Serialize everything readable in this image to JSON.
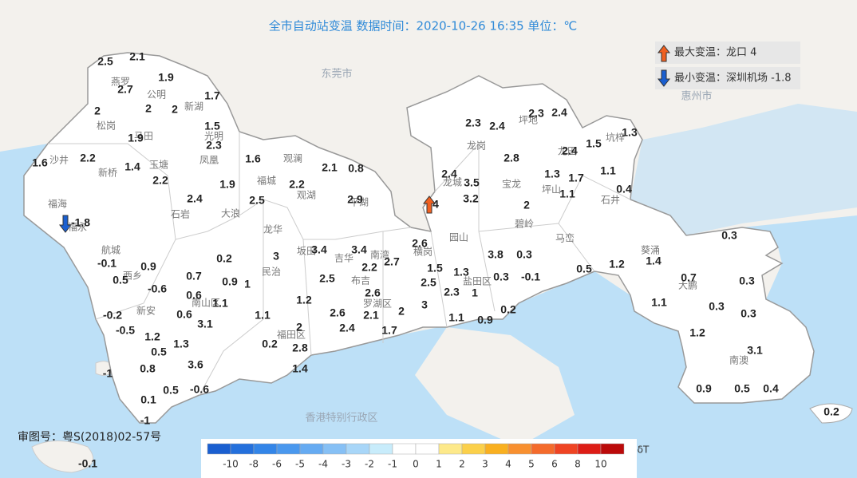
{
  "header": {
    "title": "全市自动站变温  数据时间：2020-10-26 16:35  单位：℃"
  },
  "legend": {
    "max_label": "最大变温：龙口 4",
    "min_label": "最小变温：深圳机场 -1.8"
  },
  "approval": "审图号：粤S(2018)02-57号",
  "cities": [
    "东莞市",
    "惠州市",
    "香港特别行政区"
  ],
  "places": [
    "燕罗",
    "公明",
    "新湖",
    "松岗",
    "马田",
    "光明",
    "沙井",
    "玉塘",
    "凤凰",
    "观澜",
    "新桥",
    "福城",
    "观湖",
    "平湖",
    "福海",
    "福永",
    "石岩",
    "大浪",
    "龙华",
    "航城",
    "坂田",
    "吉华",
    "南湾",
    "西乡",
    "民治",
    "布吉",
    "横岗",
    "园山",
    "龙岗",
    "坪地",
    "坑梓",
    "龙城",
    "宝龙",
    "坪山",
    "石井",
    "碧岭",
    "马峦",
    "葵涌",
    "大鹏",
    "新安",
    "南山区",
    "福田区",
    "罗湖区",
    "盐田区",
    "南澳",
    "龙田"
  ],
  "stations": [
    2.5,
    2.1,
    2.7,
    1.9,
    1.7,
    2,
    2,
    2,
    1.5,
    1.9,
    2.3,
    1.3,
    2.3,
    2.4,
    2.3,
    2.4,
    1.5,
    2.4,
    1.6,
    2.2,
    1.4,
    1.6,
    2.1,
    0.8,
    2.8,
    2.2,
    1.9,
    2.2,
    2.4,
    3.5,
    1.3,
    1.7,
    1.1,
    0.4,
    2.4,
    2.5,
    2.9,
    3.2,
    1.1,
    4,
    -1.8,
    2,
    0.3,
    2.6,
    3.4,
    3.4,
    3.8,
    0.3,
    -0.1,
    0.2,
    3,
    2.2,
    2.7,
    1.4,
    1.5,
    1.3,
    1.2,
    0.5,
    0.9,
    0.7,
    0.9,
    1,
    2.5,
    0.5,
    0.3,
    -0.1,
    0.7,
    0.3,
    2.5,
    -0.6,
    0.6,
    1.1,
    2.6,
    2.3,
    1,
    1.2,
    3,
    1.1,
    0.3,
    2,
    -0.2,
    0.6,
    1.1,
    2.6,
    2.1,
    0.2,
    0.3,
    3.1,
    -0.5,
    2,
    2.4,
    1.7,
    1.1,
    0.9,
    1.2,
    1.2,
    1.3,
    0.2,
    2.8,
    0.5,
    3.1,
    3.6,
    -1,
    0.8,
    1.4,
    -0.6,
    0.5,
    0.9,
    0.5,
    0.4,
    0.1,
    0.2,
    -1,
    -0.1
  ],
  "colorbar": {
    "label": "δT",
    "colors": [
      "#1a5fd0",
      "#2470dc",
      "#3385e8",
      "#4a98ee",
      "#66abf2",
      "#86c0f5",
      "#a8d6f8",
      "#c8ecfb",
      "#ffffff",
      "#ffffff",
      "#fde98a",
      "#fbd04a",
      "#f9b020",
      "#f89030",
      "#f46b2c",
      "#ef4423",
      "#dd1d16",
      "#bb0a0a"
    ],
    "ticks": [
      -10,
      -8,
      -6,
      -5,
      -4,
      -3,
      -2,
      -1,
      0,
      1,
      2,
      3,
      4,
      5,
      6,
      8,
      10
    ]
  }
}
